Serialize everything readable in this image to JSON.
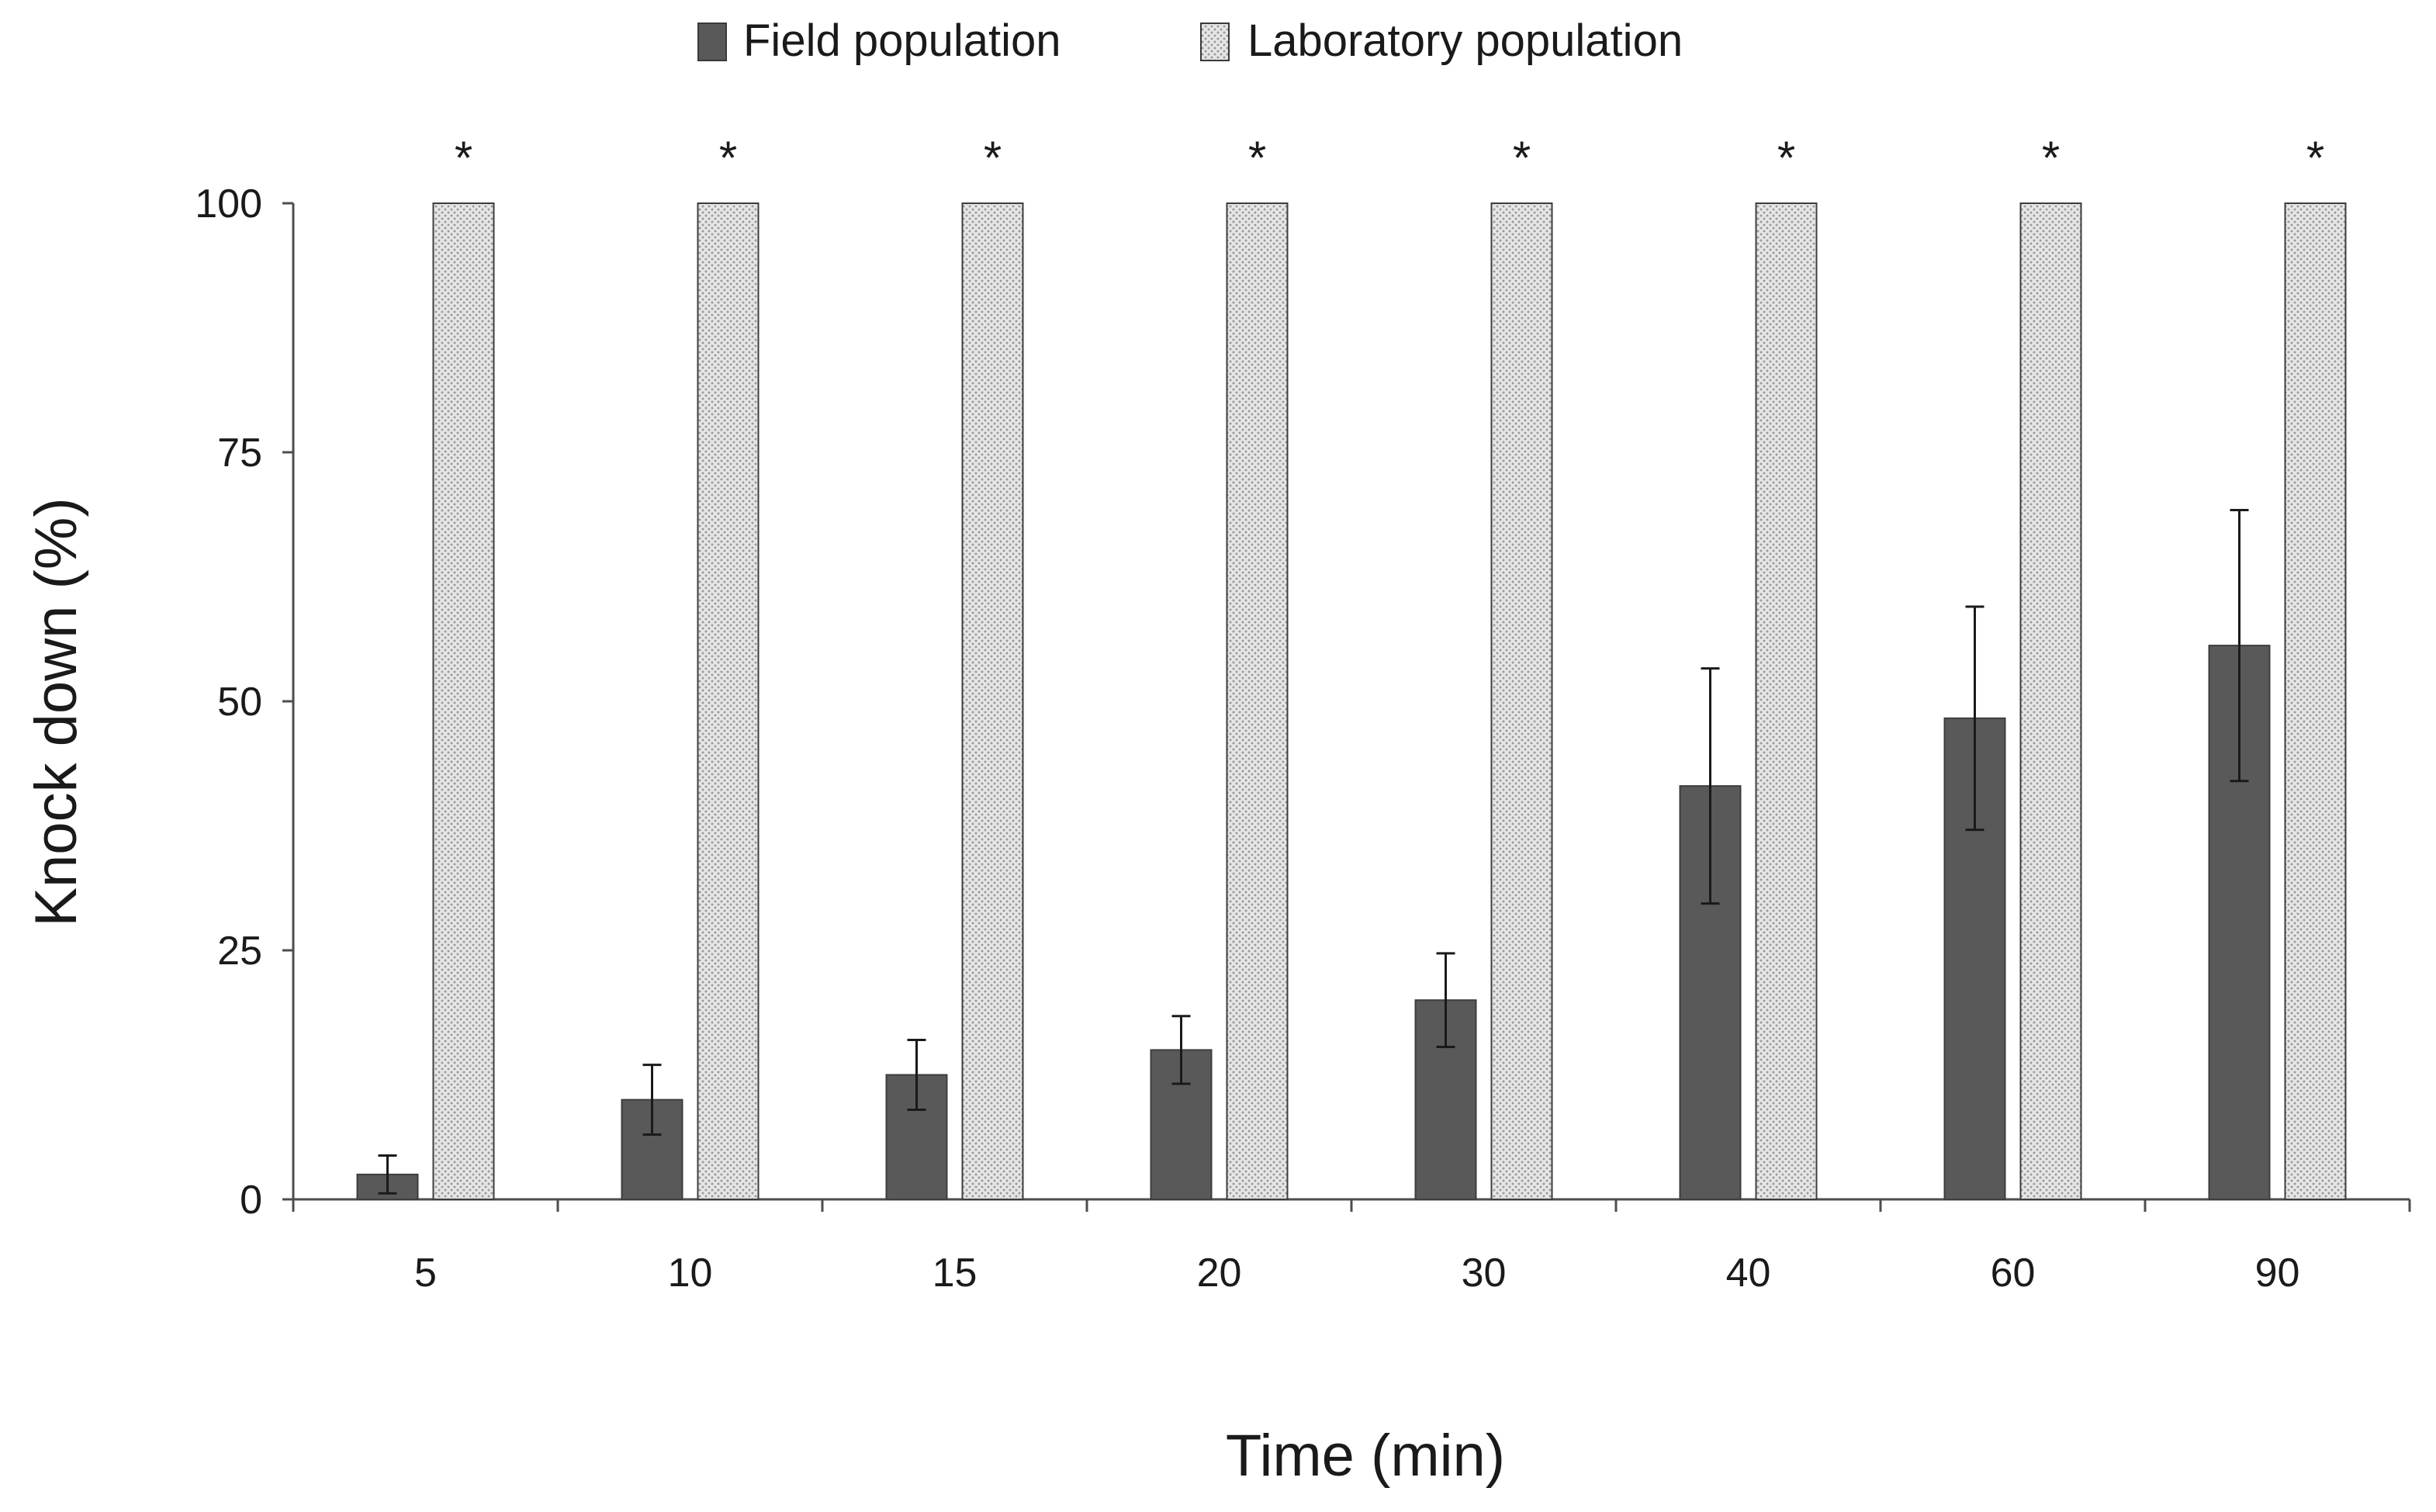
{
  "chart_data": {
    "type": "bar",
    "title": "",
    "xlabel": "Time (min)",
    "ylabel": "Knock down (%)",
    "ylim": [
      0,
      100
    ],
    "yticks": [
      "0",
      "25",
      "50",
      "75",
      "100"
    ],
    "categories": [
      "5",
      "10",
      "15",
      "20",
      "30",
      "40",
      "60",
      "90"
    ],
    "series": [
      {
        "name": "Field population",
        "color": "#595959",
        "values": [
          2.5,
          10,
          12.5,
          15,
          20,
          41.5,
          48.3,
          55.6
        ],
        "errors": [
          1.9,
          3.5,
          3.5,
          3.4,
          4.7,
          11.8,
          11.2,
          13.6
        ]
      },
      {
        "name": "Laboratory population",
        "color": "#d9d9d9",
        "pattern": "dotted-hatch",
        "values": [
          100,
          100,
          100,
          100,
          100,
          100,
          100,
          100
        ]
      }
    ],
    "significance_markers": [
      "*",
      "*",
      "*",
      "*",
      "*",
      "*",
      "*",
      "*"
    ],
    "legend_position": "top-center",
    "grid": false
  }
}
